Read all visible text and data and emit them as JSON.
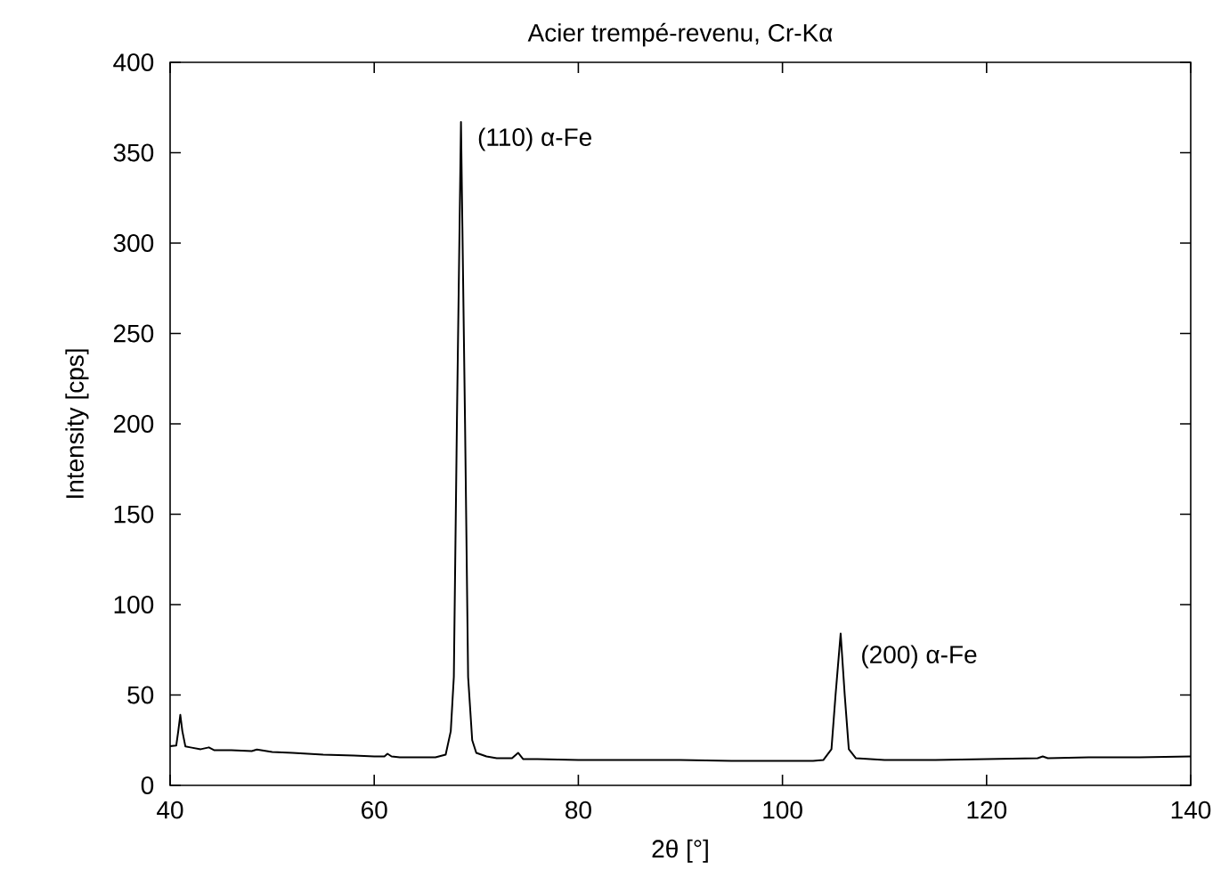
{
  "chart_data": {
    "type": "line",
    "title": "Acier trempé-revenu, Cr-Kα",
    "xlabel": "2θ [°]",
    "ylabel": "Intensity [cps]",
    "xlim": [
      40,
      140
    ],
    "ylim": [
      0,
      400
    ],
    "xticks": [
      40,
      60,
      80,
      100,
      120,
      140
    ],
    "yticks": [
      0,
      50,
      100,
      150,
      200,
      250,
      300,
      350,
      400
    ],
    "grid": false,
    "marker": "none",
    "line_style": "solid",
    "series": [
      {
        "color": "#000000",
        "x": [
          40,
          40.6,
          40.8,
          41.0,
          41.2,
          41.5,
          42,
          43,
          43.8,
          44.3,
          46,
          48,
          48.5,
          50,
          52,
          55,
          58,
          60,
          61.0,
          61.3,
          61.7,
          62.5,
          64,
          66,
          67.0,
          67.5,
          67.8,
          68.1,
          68.5,
          68.9,
          69.2,
          69.6,
          70,
          71,
          72,
          73.5,
          74.1,
          74.6,
          76,
          80,
          85,
          90,
          95,
          100,
          103,
          104,
          104.8,
          105.2,
          105.7,
          106.1,
          106.5,
          107.2,
          110,
          115,
          120,
          125,
          125.5,
          126,
          130,
          135,
          140
        ],
        "values": [
          21.7,
          22,
          30,
          39,
          30,
          21.5,
          21,
          20,
          21,
          19.5,
          19.5,
          19,
          19.8,
          18.5,
          18,
          17,
          16.5,
          16,
          16,
          17.5,
          16,
          15.5,
          15.5,
          15.5,
          17,
          30,
          60,
          200,
          367,
          200,
          60,
          25,
          18,
          16,
          15,
          15,
          18,
          14.5,
          14.5,
          14,
          14,
          14,
          13.5,
          13.5,
          13.5,
          14,
          20,
          50,
          84,
          50,
          20,
          15,
          14,
          14,
          14.5,
          15,
          16,
          15,
          15.5,
          15.5,
          16
        ]
      }
    ],
    "annotations": [
      {
        "text": "(110) α-Fe",
        "x": 68.5,
        "y": 367
      },
      {
        "text": "(200) α-Fe",
        "x": 105.7,
        "y": 84
      }
    ]
  }
}
